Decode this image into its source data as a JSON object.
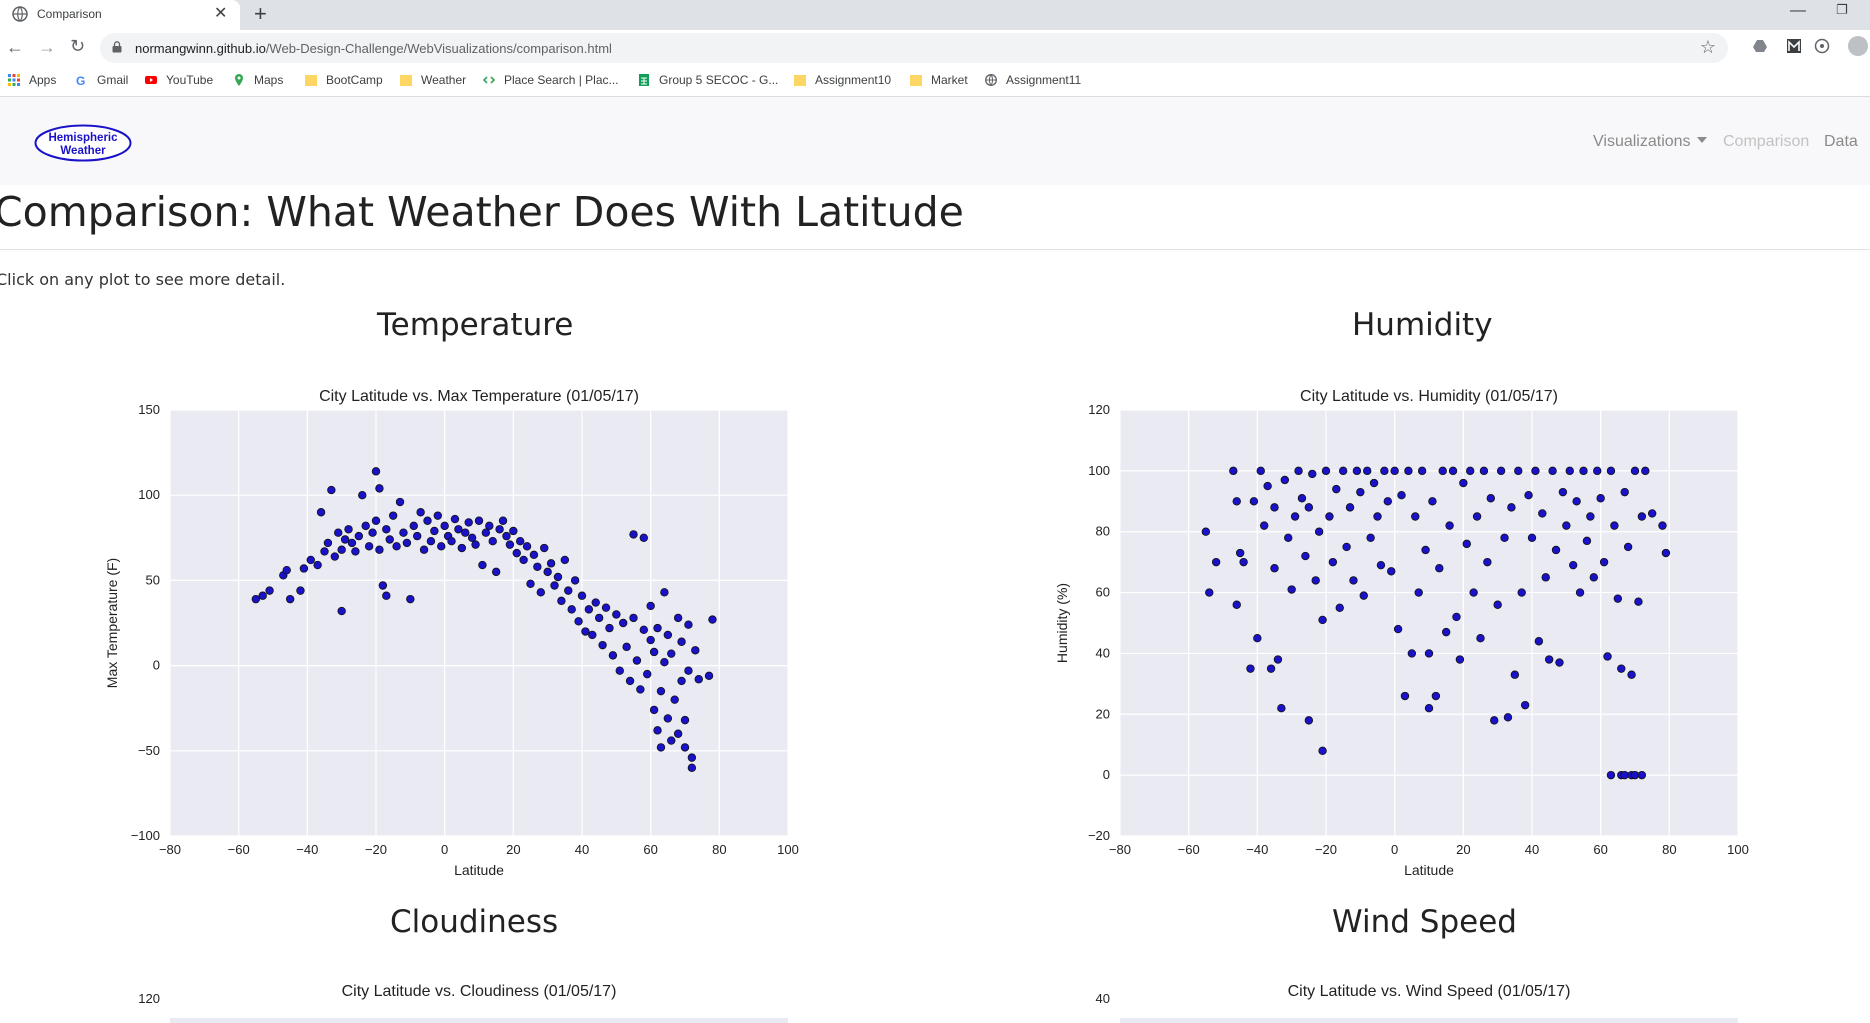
{
  "browser": {
    "tab_title": "Comparison",
    "url_host": "normangwinn.github.io",
    "url_path": "/Web-Design-Challenge/WebVisualizations/comparison.html",
    "bookmarks": [
      {
        "label": "Apps",
        "icon": "apps-grid-icon"
      },
      {
        "label": "Gmail",
        "icon": "gmail-icon"
      },
      {
        "label": "YouTube",
        "icon": "youtube-icon"
      },
      {
        "label": "Maps",
        "icon": "maps-pin-icon"
      },
      {
        "label": "BootCamp",
        "icon": "folder-icon"
      },
      {
        "label": "Weather",
        "icon": "folder-icon"
      },
      {
        "label": "Place Search  |  Plac...",
        "icon": "code-icon"
      },
      {
        "label": "Group 5 SECOC - G...",
        "icon": "sheets-icon"
      },
      {
        "label": "Assignment10",
        "icon": "folder-icon"
      },
      {
        "label": "Market",
        "icon": "folder-icon"
      },
      {
        "label": "Assignment11",
        "icon": "globe-icon"
      }
    ]
  },
  "site": {
    "brand_line1": "Hemispheric",
    "brand_line2": "Weather",
    "nav": {
      "visualizations": "Visualizations",
      "comparison": "Comparison",
      "data": "Data"
    }
  },
  "page": {
    "title": "Comparison: What Weather Does With Latitude",
    "intro": "Click on any plot to see more detail.",
    "sections": {
      "temperature": "Temperature",
      "humidity": "Humidity",
      "cloudiness": "Cloudiness",
      "wind_speed": "Wind Speed"
    }
  },
  "colors": {
    "point_fill": "#1a12c8",
    "plot_background": "#eaeaf2",
    "brand_ellipse": "#1a12c8"
  },
  "chart_data": [
    {
      "type": "scatter",
      "title": "City Latitude vs. Max Temperature (01/05/17)",
      "xlabel": "Latitude",
      "ylabel": "Max Temperature (F)",
      "xlim": [
        -80,
        100
      ],
      "ylim": [
        -100,
        150
      ],
      "xticks": [
        -80,
        -60,
        -40,
        -20,
        0,
        20,
        40,
        60,
        80,
        100
      ],
      "yticks": [
        -100,
        -50,
        0,
        50,
        100,
        150
      ],
      "grid": true,
      "points": [
        [
          -55,
          39
        ],
        [
          -53,
          41
        ],
        [
          -51,
          44
        ],
        [
          -47,
          53
        ],
        [
          -46,
          56
        ],
        [
          -45,
          39
        ],
        [
          -42,
          44
        ],
        [
          -41,
          57
        ],
        [
          -39,
          62
        ],
        [
          -37,
          59
        ],
        [
          -36,
          90
        ],
        [
          -35,
          67
        ],
        [
          -34,
          72
        ],
        [
          -33,
          103
        ],
        [
          -32,
          64
        ],
        [
          -31,
          78
        ],
        [
          -30,
          68
        ],
        [
          -30,
          32
        ],
        [
          -29,
          74
        ],
        [
          -28,
          80
        ],
        [
          -27,
          72
        ],
        [
          -26,
          67
        ],
        [
          -25,
          76
        ],
        [
          -24,
          100
        ],
        [
          -23,
          82
        ],
        [
          -22,
          70
        ],
        [
          -21,
          78
        ],
        [
          -20,
          114
        ],
        [
          -20,
          85
        ],
        [
          -19,
          104
        ],
        [
          -19,
          68
        ],
        [
          -18,
          47
        ],
        [
          -17,
          41
        ],
        [
          -17,
          80
        ],
        [
          -16,
          74
        ],
        [
          -15,
          88
        ],
        [
          -14,
          70
        ],
        [
          -13,
          96
        ],
        [
          -12,
          78
        ],
        [
          -11,
          72
        ],
        [
          -10,
          39
        ],
        [
          -9,
          82
        ],
        [
          -8,
          76
        ],
        [
          -7,
          90
        ],
        [
          -6,
          68
        ],
        [
          -5,
          85
        ],
        [
          -4,
          73
        ],
        [
          -3,
          79
        ],
        [
          -2,
          88
        ],
        [
          -1,
          70
        ],
        [
          0,
          82
        ],
        [
          1,
          76
        ],
        [
          2,
          73
        ],
        [
          3,
          86
        ],
        [
          4,
          80
        ],
        [
          5,
          69
        ],
        [
          6,
          78
        ],
        [
          7,
          84
        ],
        [
          8,
          75
        ],
        [
          9,
          71
        ],
        [
          10,
          85
        ],
        [
          11,
          59
        ],
        [
          12,
          78
        ],
        [
          13,
          82
        ],
        [
          14,
          73
        ],
        [
          15,
          55
        ],
        [
          16,
          80
        ],
        [
          17,
          85
        ],
        [
          18,
          76
        ],
        [
          19,
          71
        ],
        [
          20,
          79
        ],
        [
          21,
          66
        ],
        [
          22,
          73
        ],
        [
          23,
          62
        ],
        [
          24,
          70
        ],
        [
          25,
          48
        ],
        [
          26,
          65
        ],
        [
          27,
          58
        ],
        [
          28,
          43
        ],
        [
          29,
          69
        ],
        [
          30,
          55
        ],
        [
          31,
          60
        ],
        [
          32,
          47
        ],
        [
          33,
          52
        ],
        [
          34,
          38
        ],
        [
          35,
          62
        ],
        [
          36,
          44
        ],
        [
          37,
          33
        ],
        [
          38,
          50
        ],
        [
          39,
          26
        ],
        [
          40,
          41
        ],
        [
          41,
          20
        ],
        [
          42,
          33
        ],
        [
          43,
          18
        ],
        [
          44,
          37
        ],
        [
          45,
          28
        ],
        [
          46,
          12
        ],
        [
          47,
          34
        ],
        [
          48,
          22
        ],
        [
          49,
          6
        ],
        [
          50,
          30
        ],
        [
          51,
          -3
        ],
        [
          52,
          25
        ],
        [
          53,
          11
        ],
        [
          54,
          -9
        ],
        [
          55,
          28
        ],
        [
          55,
          77
        ],
        [
          56,
          3
        ],
        [
          57,
          -14
        ],
        [
          58,
          21
        ],
        [
          58,
          75
        ],
        [
          59,
          -5
        ],
        [
          60,
          15
        ],
        [
          60,
          35
        ],
        [
          61,
          -26
        ],
        [
          61,
          8
        ],
        [
          62,
          -38
        ],
        [
          62,
          22
        ],
        [
          63,
          -48
        ],
        [
          63,
          -15
        ],
        [
          64,
          2
        ],
        [
          64,
          43
        ],
        [
          65,
          -31
        ],
        [
          65,
          18
        ],
        [
          66,
          -44
        ],
        [
          66,
          7
        ],
        [
          67,
          -20
        ],
        [
          68,
          28
        ],
        [
          68,
          -40
        ],
        [
          69,
          -9
        ],
        [
          69,
          14
        ],
        [
          70,
          -32
        ],
        [
          70,
          -48
        ],
        [
          71,
          24
        ],
        [
          71,
          -3
        ],
        [
          72,
          -54
        ],
        [
          72,
          -60
        ],
        [
          73,
          9
        ],
        [
          74,
          -8
        ],
        [
          77,
          -6
        ],
        [
          78,
          27
        ]
      ]
    },
    {
      "type": "scatter",
      "title": "City Latitude vs. Humidity (01/05/17)",
      "xlabel": "Latitude",
      "ylabel": "Humidity (%)",
      "xlim": [
        -80,
        100
      ],
      "ylim": [
        -20,
        120
      ],
      "xticks": [
        -80,
        -60,
        -40,
        -20,
        0,
        20,
        40,
        60,
        80,
        100
      ],
      "yticks": [
        -20,
        0,
        20,
        40,
        60,
        80,
        100,
        120
      ],
      "grid": true,
      "points": [
        [
          -55,
          80
        ],
        [
          -54,
          60
        ],
        [
          -52,
          70
        ],
        [
          -47,
          100
        ],
        [
          -46,
          90
        ],
        [
          -46,
          56
        ],
        [
          -45,
          73
        ],
        [
          -44,
          70
        ],
        [
          -42,
          35
        ],
        [
          -41,
          90
        ],
        [
          -40,
          45
        ],
        [
          -39,
          100
        ],
        [
          -38,
          82
        ],
        [
          -37,
          95
        ],
        [
          -36,
          35
        ],
        [
          -35,
          88
        ],
        [
          -35,
          68
        ],
        [
          -34,
          38
        ],
        [
          -33,
          22
        ],
        [
          -32,
          97
        ],
        [
          -31,
          78
        ],
        [
          -30,
          61
        ],
        [
          -29,
          85
        ],
        [
          -28,
          100
        ],
        [
          -27,
          91
        ],
        [
          -26,
          72
        ],
        [
          -25,
          18
        ],
        [
          -25,
          88
        ],
        [
          -24,
          99
        ],
        [
          -23,
          64
        ],
        [
          -22,
          80
        ],
        [
          -21,
          51
        ],
        [
          -21,
          8
        ],
        [
          -20,
          100
        ],
        [
          -19,
          85
        ],
        [
          -18,
          70
        ],
        [
          -17,
          94
        ],
        [
          -16,
          55
        ],
        [
          -15,
          100
        ],
        [
          -14,
          75
        ],
        [
          -13,
          88
        ],
        [
          -12,
          64
        ],
        [
          -11,
          100
        ],
        [
          -10,
          93
        ],
        [
          -9,
          59
        ],
        [
          -8,
          100
        ],
        [
          -7,
          78
        ],
        [
          -6,
          96
        ],
        [
          -5,
          85
        ],
        [
          -4,
          69
        ],
        [
          -3,
          100
        ],
        [
          -2,
          90
        ],
        [
          -1,
          67
        ],
        [
          0,
          100
        ],
        [
          1,
          48
        ],
        [
          2,
          92
        ],
        [
          3,
          26
        ],
        [
          4,
          100
        ],
        [
          5,
          40
        ],
        [
          6,
          85
        ],
        [
          7,
          60
        ],
        [
          8,
          100
        ],
        [
          9,
          74
        ],
        [
          10,
          40
        ],
        [
          10,
          22
        ],
        [
          11,
          90
        ],
        [
          12,
          26
        ],
        [
          13,
          68
        ],
        [
          14,
          100
        ],
        [
          15,
          47
        ],
        [
          16,
          82
        ],
        [
          17,
          100
        ],
        [
          18,
          52
        ],
        [
          19,
          38
        ],
        [
          20,
          96
        ],
        [
          21,
          76
        ],
        [
          22,
          100
        ],
        [
          23,
          60
        ],
        [
          24,
          85
        ],
        [
          25,
          45
        ],
        [
          26,
          100
        ],
        [
          27,
          70
        ],
        [
          28,
          91
        ],
        [
          29,
          18
        ],
        [
          30,
          56
        ],
        [
          31,
          100
        ],
        [
          32,
          78
        ],
        [
          33,
          19
        ],
        [
          34,
          88
        ],
        [
          35,
          33
        ],
        [
          36,
          100
        ],
        [
          37,
          60
        ],
        [
          38,
          23
        ],
        [
          39,
          92
        ],
        [
          40,
          78
        ],
        [
          41,
          100
        ],
        [
          42,
          44
        ],
        [
          43,
          86
        ],
        [
          44,
          65
        ],
        [
          45,
          38
        ],
        [
          46,
          100
        ],
        [
          47,
          74
        ],
        [
          48,
          37
        ],
        [
          49,
          93
        ],
        [
          50,
          82
        ],
        [
          51,
          100
        ],
        [
          52,
          69
        ],
        [
          53,
          90
        ],
        [
          54,
          60
        ],
        [
          55,
          100
        ],
        [
          56,
          77
        ],
        [
          57,
          85
        ],
        [
          58,
          65
        ],
        [
          59,
          100
        ],
        [
          60,
          91
        ],
        [
          61,
          70
        ],
        [
          62,
          39
        ],
        [
          63,
          100
        ],
        [
          63,
          0
        ],
        [
          64,
          82
        ],
        [
          65,
          58
        ],
        [
          66,
          35
        ],
        [
          66,
          0
        ],
        [
          67,
          93
        ],
        [
          67,
          0
        ],
        [
          68,
          75
        ],
        [
          69,
          33
        ],
        [
          69,
          0
        ],
        [
          70,
          100
        ],
        [
          70,
          0
        ],
        [
          71,
          57
        ],
        [
          72,
          85
        ],
        [
          72,
          0
        ],
        [
          73,
          100
        ],
        [
          75,
          86
        ],
        [
          78,
          82
        ],
        [
          79,
          73
        ]
      ]
    }
  ],
  "lower_charts": [
    {
      "title": "City Latitude vs. Cloudiness (01/05/17)",
      "ytick_visible": "120"
    },
    {
      "title": "City Latitude vs. Wind Speed (01/05/17)",
      "ytick_visible": "40"
    }
  ]
}
